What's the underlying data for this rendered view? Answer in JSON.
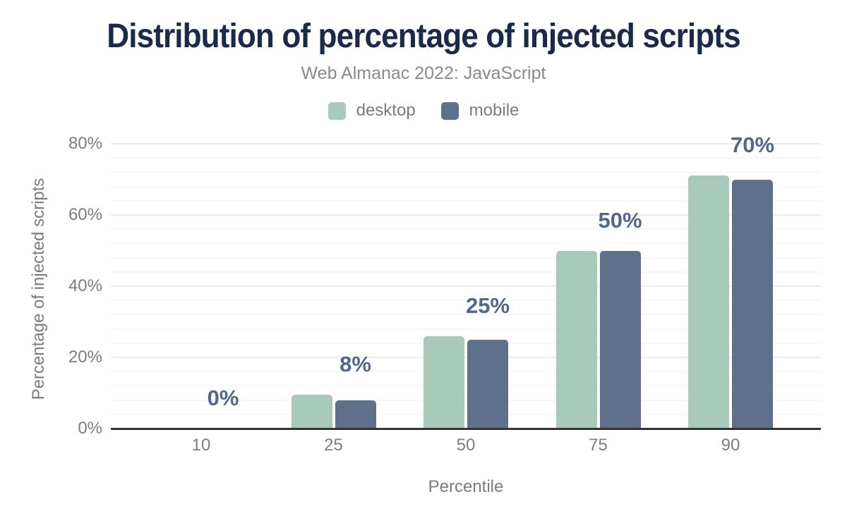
{
  "chart_data": {
    "type": "bar",
    "title": "Distribution of percentage of injected scripts",
    "subtitle": "Web Almanac 2022: JavaScript",
    "xlabel": "Percentile",
    "ylabel": "Percentage of injected scripts",
    "categories": [
      "10",
      "25",
      "50",
      "75",
      "90"
    ],
    "series": [
      {
        "name": "desktop",
        "color": "#a8cabb",
        "values": [
          0,
          9.5,
          26,
          50,
          71
        ]
      },
      {
        "name": "mobile",
        "color": "#5f708b",
        "values": [
          0,
          8,
          25,
          50,
          70
        ]
      }
    ],
    "data_labels": [
      "0%",
      "8%",
      "25%",
      "50%",
      "70%"
    ],
    "ylim": [
      0,
      80
    ],
    "yticks": [
      {
        "label": "0%",
        "value": 0
      },
      {
        "label": "20%",
        "value": 20
      },
      {
        "label": "40%",
        "value": 40
      },
      {
        "label": "60%",
        "value": 60
      },
      {
        "label": "80%",
        "value": 80
      }
    ],
    "grid": {
      "show": true,
      "major_interval": 20,
      "minor_interval": 4
    },
    "legend_position": "top"
  },
  "colors": {
    "title": "#1a2a4a",
    "subtitle": "#8a8a8a",
    "axis_text": "#7d7d7d",
    "value_label": "#51678d",
    "axis_line": "#333333",
    "grid_major": "#ececec",
    "grid_minor": "#f7f7f7",
    "desktop": "#a8cabb",
    "mobile": "#5f708b",
    "background": "#ffffff"
  }
}
